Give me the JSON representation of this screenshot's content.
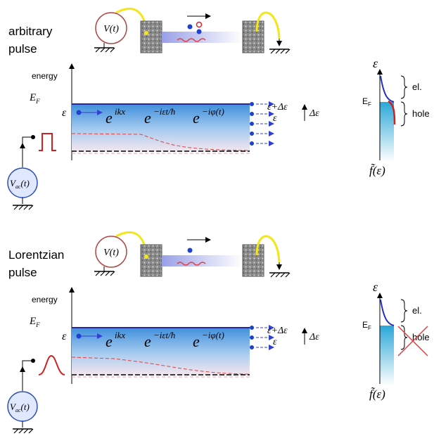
{
  "panels": [
    {
      "title_lines": [
        "arbitrary",
        "pulse"
      ],
      "source": "V(t)",
      "axis_label": "energy",
      "fermi": "E",
      "fermi_sub": "F",
      "level": "ε",
      "wave": [
        "e",
        "ikx",
        "e",
        "−iεt/ħ",
        "e",
        "−iφ(t)"
      ],
      "upper": "ε+Δε",
      "lower": "ε",
      "delta": "Δε",
      "generator": "V",
      "generator_sub": "ac",
      "generator_arg": "(t)",
      "dist_axis": "ε",
      "el": "el.",
      "dist_fermi": "E",
      "dist_fermi_sub": "F",
      "hole": "hole",
      "dist_label": "f̃(ε)"
    },
    {
      "title_lines": [
        "Lorentzian",
        "pulse"
      ],
      "source": "V(t)",
      "axis_label": "energy",
      "fermi": "E",
      "fermi_sub": "F",
      "level": "ε",
      "wave": [
        "e",
        "ikx",
        "e",
        "−iεt/ħ",
        "e",
        "−iφ(t)"
      ],
      "upper": "ε+Δε",
      "lower": "ε",
      "delta": "Δε",
      "generator": "V",
      "generator_sub": "ac",
      "generator_arg": "(t)",
      "dist_axis": "ε",
      "el": "el.",
      "dist_fermi": "E",
      "dist_fermi_sub": "F",
      "hole": "hole",
      "dist_label": "f̃(ε)"
    }
  ]
}
